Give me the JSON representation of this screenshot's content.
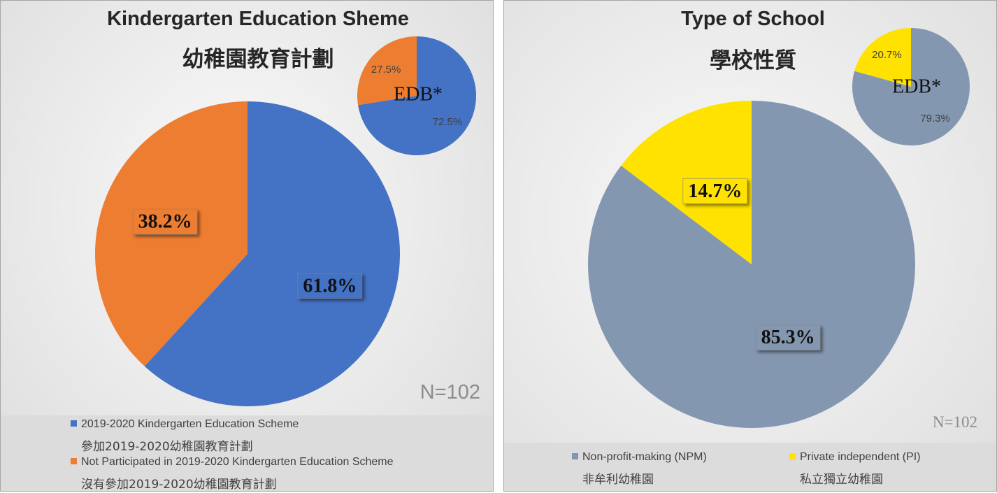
{
  "colors": {
    "blue": "#4472C4",
    "orange": "#ED7D31",
    "grey_blue": "#8497B0",
    "yellow": "#FFE200"
  },
  "chart_data": [
    {
      "type": "pie",
      "title": "Kindergarten Education Sheme",
      "subtitle": "幼稚園教育計劃",
      "n_label": "N=102",
      "slices": [
        {
          "value": 61.8,
          "label": "61.8%",
          "color": "#4472C4"
        },
        {
          "value": 38.2,
          "label": "38.2%",
          "color": "#ED7D31"
        }
      ],
      "inset": {
        "label": "EDB*",
        "slices": [
          {
            "value": 72.5,
            "label": "72.5%",
            "color": "#4472C4"
          },
          {
            "value": 27.5,
            "label": "27.5%",
            "color": "#ED7D31"
          }
        ]
      },
      "legend": [
        {
          "name": "2019-2020 Kindergarten Education Scheme",
          "name_zh": "參加2019-2020幼稚園教育計劃",
          "color": "#4472C4"
        },
        {
          "name": "Not Participated in 2019-2020 Kindergarten Education Scheme",
          "name_zh": "沒有參加2019-2020幼稚園教育計劃",
          "color": "#ED7D31"
        }
      ]
    },
    {
      "type": "pie",
      "title": "Type of School",
      "subtitle": "學校性質",
      "n_label": "N=102",
      "slices": [
        {
          "value": 85.3,
          "label": "85.3%",
          "color": "#8497B0"
        },
        {
          "value": 14.7,
          "label": "14.7%",
          "color": "#FFE200"
        }
      ],
      "inset": {
        "label": "EDB*",
        "slices": [
          {
            "value": 79.3,
            "label": "79.3%",
            "color": "#8497B0"
          },
          {
            "value": 20.7,
            "label": "20.7%",
            "color": "#FFE200"
          }
        ]
      },
      "legend": [
        {
          "name": "Non-profit-making (NPM)",
          "name_zh": "非牟利幼稚園",
          "color": "#8497B0"
        },
        {
          "name": "Private independent (PI)",
          "name_zh": "私立獨立幼稚園",
          "color": "#FFE200"
        }
      ]
    }
  ]
}
